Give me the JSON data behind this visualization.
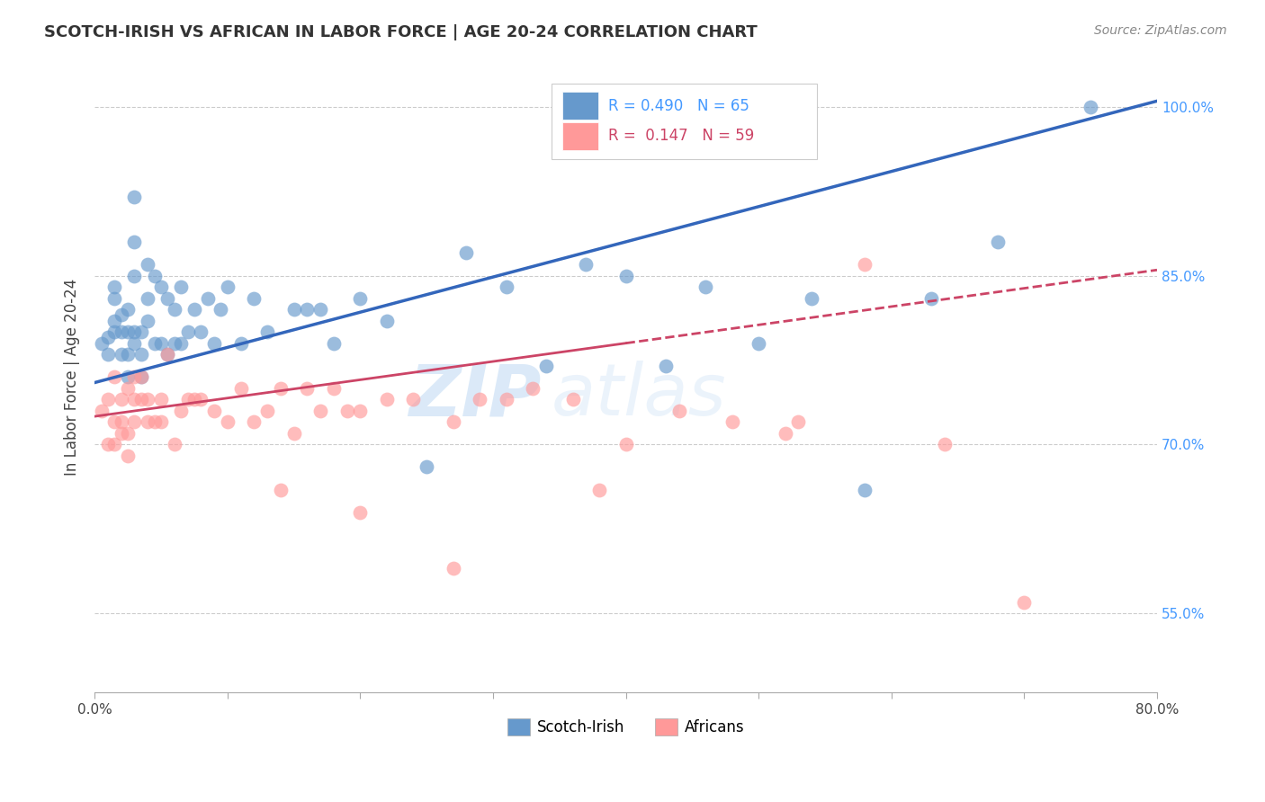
{
  "title": "SCOTCH-IRISH VS AFRICAN IN LABOR FORCE | AGE 20-24 CORRELATION CHART",
  "source": "Source: ZipAtlas.com",
  "ylabel": "In Labor Force | Age 20-24",
  "xmin": 0.0,
  "xmax": 0.8,
  "ymin": 0.48,
  "ymax": 1.04,
  "yticks": [
    0.55,
    0.7,
    0.85,
    1.0
  ],
  "ytick_labels": [
    "55.0%",
    "70.0%",
    "85.0%",
    "100.0%"
  ],
  "xticks": [
    0.0,
    0.1,
    0.2,
    0.3,
    0.4,
    0.5,
    0.6,
    0.7,
    0.8
  ],
  "xtick_labels": [
    "0.0%",
    "",
    "",
    "",
    "",
    "",
    "",
    "",
    "80.0%"
  ],
  "blue_R": 0.49,
  "blue_N": 65,
  "pink_R": 0.147,
  "pink_N": 59,
  "blue_color": "#6699cc",
  "pink_color": "#ff9999",
  "blue_line_color": "#3366bb",
  "pink_line_color": "#cc4466",
  "legend_label_blue": "Scotch-Irish",
  "legend_label_pink": "Africans",
  "watermark_zip": "ZIP",
  "watermark_atlas": "atlas",
  "blue_line_x0": 0.0,
  "blue_line_y0": 0.755,
  "blue_line_x1": 0.8,
  "blue_line_y1": 1.005,
  "pink_line_x0": 0.0,
  "pink_line_y0": 0.725,
  "pink_line_x1": 0.8,
  "pink_line_y1": 0.855,
  "blue_scatter_x": [
    0.005,
    0.01,
    0.01,
    0.015,
    0.015,
    0.015,
    0.015,
    0.02,
    0.02,
    0.02,
    0.025,
    0.025,
    0.025,
    0.025,
    0.03,
    0.03,
    0.03,
    0.03,
    0.03,
    0.035,
    0.035,
    0.035,
    0.04,
    0.04,
    0.04,
    0.045,
    0.045,
    0.05,
    0.05,
    0.055,
    0.055,
    0.06,
    0.06,
    0.065,
    0.065,
    0.07,
    0.075,
    0.08,
    0.085,
    0.09,
    0.095,
    0.1,
    0.11,
    0.12,
    0.13,
    0.15,
    0.16,
    0.17,
    0.18,
    0.2,
    0.22,
    0.25,
    0.28,
    0.31,
    0.34,
    0.37,
    0.4,
    0.43,
    0.46,
    0.5,
    0.54,
    0.58,
    0.63,
    0.68,
    0.75
  ],
  "blue_scatter_y": [
    0.79,
    0.795,
    0.78,
    0.8,
    0.81,
    0.83,
    0.84,
    0.78,
    0.8,
    0.815,
    0.76,
    0.78,
    0.8,
    0.82,
    0.79,
    0.8,
    0.85,
    0.88,
    0.92,
    0.76,
    0.78,
    0.8,
    0.81,
    0.83,
    0.86,
    0.79,
    0.85,
    0.79,
    0.84,
    0.78,
    0.83,
    0.79,
    0.82,
    0.79,
    0.84,
    0.8,
    0.82,
    0.8,
    0.83,
    0.79,
    0.82,
    0.84,
    0.79,
    0.83,
    0.8,
    0.82,
    0.82,
    0.82,
    0.79,
    0.83,
    0.81,
    0.68,
    0.87,
    0.84,
    0.77,
    0.86,
    0.85,
    0.77,
    0.84,
    0.79,
    0.83,
    0.66,
    0.83,
    0.88,
    1.0
  ],
  "pink_scatter_x": [
    0.005,
    0.01,
    0.01,
    0.015,
    0.015,
    0.015,
    0.02,
    0.02,
    0.02,
    0.025,
    0.025,
    0.025,
    0.03,
    0.03,
    0.03,
    0.035,
    0.035,
    0.04,
    0.04,
    0.045,
    0.05,
    0.05,
    0.055,
    0.06,
    0.065,
    0.07,
    0.075,
    0.08,
    0.09,
    0.1,
    0.11,
    0.12,
    0.13,
    0.14,
    0.15,
    0.16,
    0.17,
    0.18,
    0.19,
    0.2,
    0.22,
    0.24,
    0.27,
    0.29,
    0.31,
    0.33,
    0.36,
    0.4,
    0.44,
    0.48,
    0.53,
    0.58,
    0.64,
    0.7,
    0.14,
    0.2,
    0.27,
    0.38,
    0.52
  ],
  "pink_scatter_y": [
    0.73,
    0.7,
    0.74,
    0.7,
    0.72,
    0.76,
    0.71,
    0.72,
    0.74,
    0.69,
    0.71,
    0.75,
    0.72,
    0.74,
    0.76,
    0.74,
    0.76,
    0.72,
    0.74,
    0.72,
    0.72,
    0.74,
    0.78,
    0.7,
    0.73,
    0.74,
    0.74,
    0.74,
    0.73,
    0.72,
    0.75,
    0.72,
    0.73,
    0.75,
    0.71,
    0.75,
    0.73,
    0.75,
    0.73,
    0.73,
    0.74,
    0.74,
    0.72,
    0.74,
    0.74,
    0.75,
    0.74,
    0.7,
    0.73,
    0.72,
    0.72,
    0.86,
    0.7,
    0.56,
    0.66,
    0.64,
    0.59,
    0.66,
    0.71
  ]
}
